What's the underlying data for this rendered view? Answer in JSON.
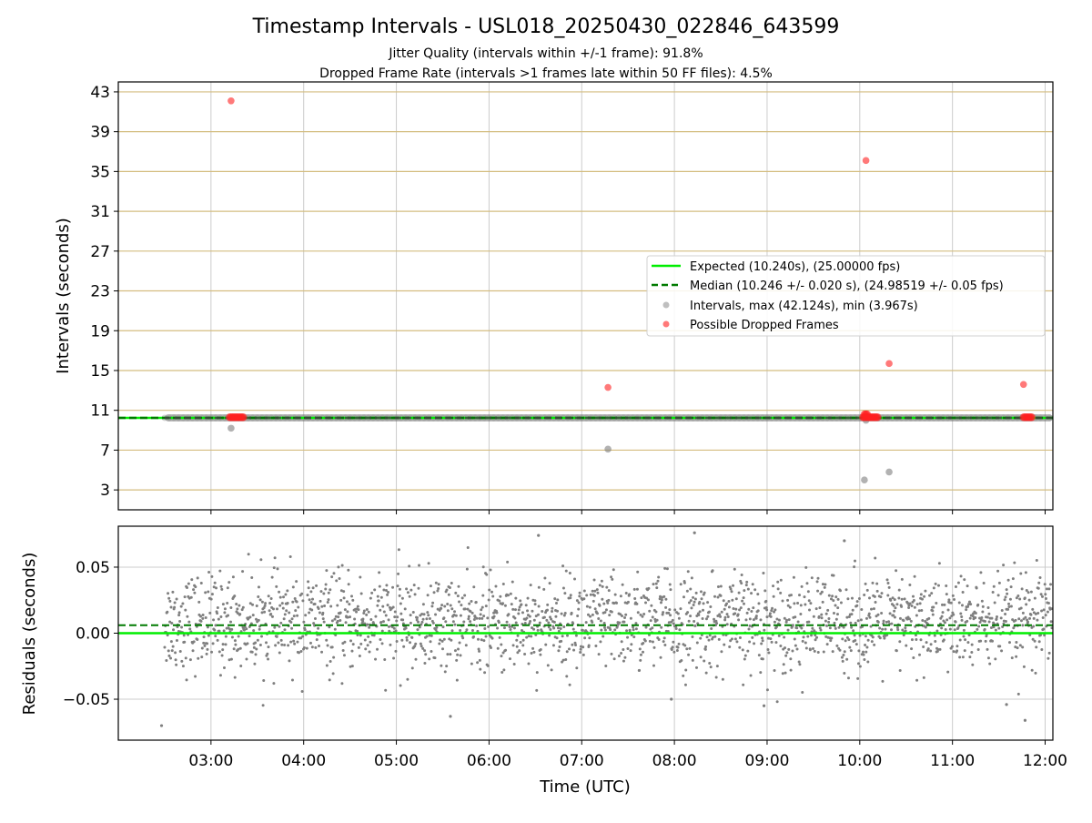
{
  "chart_data": [
    {
      "type": "scatter",
      "title": "Timestamp Intervals - USL018_20250430_022846_643599",
      "subtitle_lines": [
        "Jitter Quality (intervals within +/-1 frame): 91.8%",
        "Dropped Frame Rate (intervals >1 frames late within 50 FF files): 4.5%"
      ],
      "ylabel": "Intervals (seconds)",
      "xlabel": "",
      "xlim": [
        "02:00",
        "12:05"
      ],
      "ylim": [
        1.0,
        44.0
      ],
      "yticks": [
        "3",
        "7",
        "11",
        "15",
        "19",
        "23",
        "27",
        "31",
        "35",
        "39",
        "43"
      ],
      "ytick_values": [
        3,
        7,
        11,
        15,
        19,
        23,
        27,
        31,
        35,
        39,
        43
      ],
      "grid": true,
      "legend_placement": "center-right",
      "legend": [
        "Expected (10.240s), (25.00000 fps)",
        "Median (10.246 +/- 0.020 s), (24.98519 +/- 0.05 fps)",
        "Intervals, max (42.124s), min (3.967s)",
        "Possible Dropped Frames"
      ],
      "expected_interval": 10.24,
      "median_interval": 10.246,
      "intervals_band": {
        "x_start": "02:30",
        "x_end": "12:05",
        "value": 10.246
      },
      "outlier_intervals": [
        {
          "x": "03:13",
          "y": 9.2
        },
        {
          "x": "07:17",
          "y": 7.1
        },
        {
          "x": "10:03",
          "y": 4.0
        },
        {
          "x": "10:04",
          "y": 10.0
        },
        {
          "x": "10:19",
          "y": 4.8
        }
      ],
      "dropped_frames": [
        {
          "x": "03:13",
          "y": 42.1
        },
        {
          "x": "07:17",
          "y": 13.3
        },
        {
          "x": "10:04",
          "y": 36.1
        },
        {
          "x": "10:19",
          "y": 15.7
        },
        {
          "x": "11:46",
          "y": 13.6
        }
      ],
      "dropped_clusters": [
        {
          "x_start": "03:12",
          "x_end": "03:21",
          "y": 10.3
        },
        {
          "x_start": "10:02",
          "x_end": "10:12",
          "y": 10.3
        },
        {
          "x_start": "11:46",
          "x_end": "11:52",
          "y": 10.3
        },
        {
          "x_start": "10:03",
          "x_end": "10:05",
          "y": 10.6
        }
      ],
      "colors": {
        "expected": "#00ee00",
        "median": "#007a00",
        "intervals": "#7f7f7f",
        "dropped": "#ff2020",
        "grid_h": "#d4bd80",
        "grid_v": "#cccccc"
      }
    },
    {
      "type": "scatter",
      "title": "",
      "xlabel": "Time (UTC)",
      "ylabel": "Residuals (seconds)",
      "xlim": [
        "02:00",
        "12:05"
      ],
      "ylim": [
        -0.081,
        0.081
      ],
      "xticks": [
        "03:00",
        "04:00",
        "05:00",
        "06:00",
        "07:00",
        "08:00",
        "09:00",
        "10:00",
        "11:00",
        "12:00"
      ],
      "yticks": [
        "0.05",
        "0.00",
        "−0.05"
      ],
      "ytick_values": [
        0.05,
        0.0,
        -0.05
      ],
      "grid": true,
      "expected_residual": 0.0,
      "median_residual": 0.006,
      "residual_points": {
        "count": 2100,
        "x_start": "02:30",
        "x_end": "12:05",
        "center": 0.008,
        "spread": 0.018
      },
      "notable_residuals": [
        {
          "x": "02:28",
          "y": -0.07
        },
        {
          "x": "05:35",
          "y": -0.063
        },
        {
          "x": "06:32",
          "y": 0.074
        },
        {
          "x": "08:13",
          "y": 0.076
        },
        {
          "x": "07:58",
          "y": -0.05
        },
        {
          "x": "08:58",
          "y": -0.055
        },
        {
          "x": "11:35",
          "y": -0.054
        },
        {
          "x": "11:47",
          "y": -0.066
        },
        {
          "x": "09:50",
          "y": 0.07
        }
      ]
    }
  ]
}
